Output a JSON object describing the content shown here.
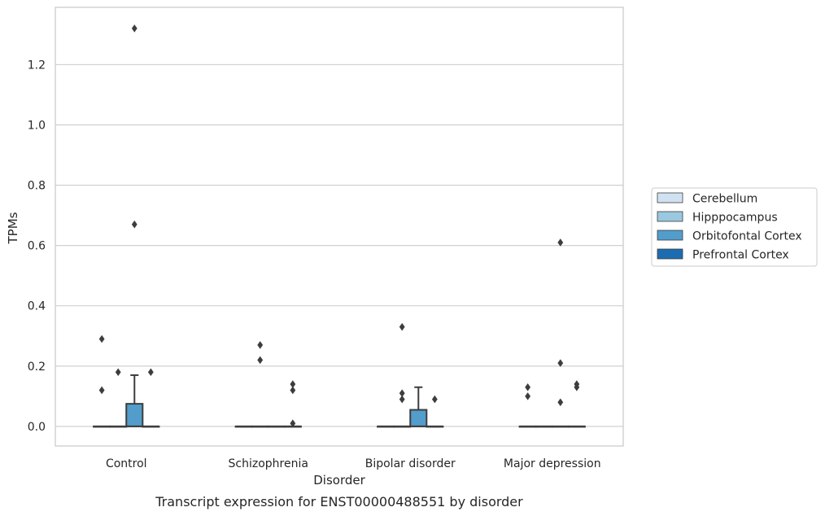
{
  "chart_data": {
    "type": "box",
    "caption": "Transcript expression for ENST00000488551 by disorder",
    "xlabel": "Disorder",
    "ylabel": "TPMs",
    "ylim": [
      -0.065,
      1.39
    ],
    "yticks": [
      "0.0",
      "0.2",
      "0.4",
      "0.6",
      "0.8",
      "1.0",
      "1.2"
    ],
    "ytick_values": [
      0,
      0.2,
      0.4,
      0.6,
      0.8,
      1.0,
      1.2
    ],
    "grid": "horizontal",
    "legend_position": "right",
    "categories": [
      "Control",
      "Schizophrenia",
      "Bipolar disorder",
      "Major depression"
    ],
    "series": [
      {
        "name": "Cerebellum",
        "color": "#d0e2f2",
        "boxes": [
          {
            "q1": 0,
            "median": 0,
            "q3": 0,
            "whisker_low": 0,
            "whisker_high": 0,
            "outliers": [
              0.12,
              0.29
            ]
          },
          {
            "q1": 0,
            "median": 0,
            "q3": 0,
            "whisker_low": 0,
            "whisker_high": 0,
            "outliers": []
          },
          {
            "q1": 0,
            "median": 0,
            "q3": 0,
            "whisker_low": 0,
            "whisker_high": 0,
            "outliers": []
          },
          {
            "q1": 0,
            "median": 0,
            "q3": 0,
            "whisker_low": 0,
            "whisker_high": 0,
            "outliers": [
              0.1,
              0.13
            ]
          }
        ]
      },
      {
        "name": "Hipppocampus",
        "color": "#9ac8e0",
        "boxes": [
          {
            "q1": 0,
            "median": 0,
            "q3": 0,
            "whisker_low": 0,
            "whisker_high": 0,
            "outliers": [
              0.18
            ]
          },
          {
            "q1": 0,
            "median": 0,
            "q3": 0,
            "whisker_low": 0,
            "whisker_high": 0,
            "outliers": [
              0.22,
              0.27
            ]
          },
          {
            "q1": 0,
            "median": 0,
            "q3": 0,
            "whisker_low": 0,
            "whisker_high": 0,
            "outliers": [
              0.09,
              0.11,
              0.33
            ]
          },
          {
            "q1": 0,
            "median": 0,
            "q3": 0,
            "whisker_low": 0,
            "whisker_high": 0,
            "outliers": []
          }
        ]
      },
      {
        "name": "Orbitofontal Cortex",
        "color": "#529dcc",
        "boxes": [
          {
            "q1": 0,
            "median": 0,
            "q3": 0.075,
            "whisker_low": 0,
            "whisker_high": 0.17,
            "outliers": [
              0.67,
              1.32
            ]
          },
          {
            "q1": 0,
            "median": 0,
            "q3": 0,
            "whisker_low": 0,
            "whisker_high": 0,
            "outliers": []
          },
          {
            "q1": 0,
            "median": 0,
            "q3": 0.055,
            "whisker_low": 0,
            "whisker_high": 0.13,
            "outliers": []
          },
          {
            "q1": 0,
            "median": 0,
            "q3": 0,
            "whisker_low": 0,
            "whisker_high": 0,
            "outliers": [
              0.08,
              0.21,
              0.61
            ]
          }
        ]
      },
      {
        "name": "Prefrontal Cortex",
        "color": "#1c6cb1",
        "boxes": [
          {
            "q1": 0,
            "median": 0,
            "q3": 0,
            "whisker_low": 0,
            "whisker_high": 0,
            "outliers": [
              0.18
            ]
          },
          {
            "q1": 0,
            "median": 0,
            "q3": 0,
            "whisker_low": 0,
            "whisker_high": 0,
            "outliers": [
              0.01,
              0.12,
              0.14
            ]
          },
          {
            "q1": 0,
            "median": 0,
            "q3": 0,
            "whisker_low": 0,
            "whisker_high": 0,
            "outliers": [
              0.09
            ]
          },
          {
            "q1": 0,
            "median": 0,
            "q3": 0,
            "whisker_low": 0,
            "whisker_high": 0,
            "outliers": [
              0.13,
              0.14
            ]
          }
        ]
      }
    ],
    "colors": {
      "grid": "#cccccc",
      "frame": "#cccccc",
      "box_edge": "#3d3d3d",
      "outlier": "#3d3d3d"
    }
  }
}
